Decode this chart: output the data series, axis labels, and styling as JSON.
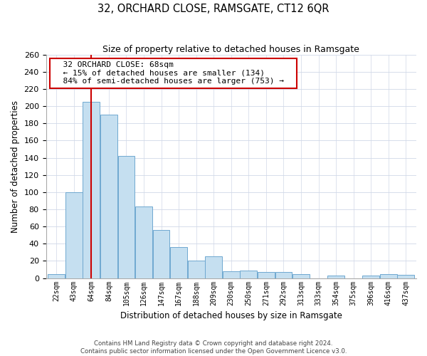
{
  "title": "32, ORCHARD CLOSE, RAMSGATE, CT12 6QR",
  "subtitle": "Size of property relative to detached houses in Ramsgate",
  "xlabel": "Distribution of detached houses by size in Ramsgate",
  "ylabel": "Number of detached properties",
  "bar_labels": [
    "22sqm",
    "43sqm",
    "64sqm",
    "84sqm",
    "105sqm",
    "126sqm",
    "147sqm",
    "167sqm",
    "188sqm",
    "209sqm",
    "230sqm",
    "250sqm",
    "271sqm",
    "292sqm",
    "313sqm",
    "333sqm",
    "354sqm",
    "375sqm",
    "396sqm",
    "416sqm",
    "437sqm"
  ],
  "bar_values": [
    5,
    100,
    205,
    190,
    142,
    83,
    56,
    36,
    20,
    25,
    8,
    9,
    7,
    7,
    5,
    0,
    3,
    0,
    3,
    5,
    4
  ],
  "property_line_index": 2,
  "annotation_title": "32 ORCHARD CLOSE: 68sqm",
  "annotation_line1": "← 15% of detached houses are smaller (134)",
  "annotation_line2": "84% of semi-detached houses are larger (753) →",
  "bar_color": "#c5dff0",
  "bar_edge_color": "#6fa8d0",
  "line_color": "#cc0000",
  "ylim": [
    0,
    260
  ],
  "yticks": [
    0,
    20,
    40,
    60,
    80,
    100,
    120,
    140,
    160,
    180,
    200,
    220,
    240,
    260
  ],
  "footer_line1": "Contains HM Land Registry data © Crown copyright and database right 2024.",
  "footer_line2": "Contains public sector information licensed under the Open Government Licence v3.0."
}
